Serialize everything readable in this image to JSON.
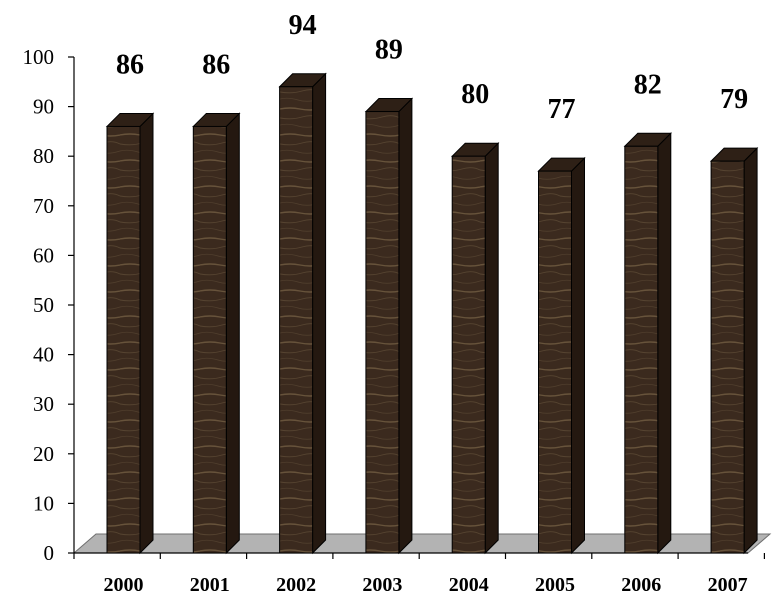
{
  "chart_data": {
    "type": "bar",
    "categories": [
      "2000",
      "2001",
      "2002",
      "2003",
      "2004",
      "2005",
      "2006",
      "2007"
    ],
    "values": [
      86,
      86,
      94,
      89,
      80,
      77,
      82,
      79
    ],
    "ylim": [
      0,
      100
    ],
    "yticks": [
      0,
      10,
      20,
      30,
      40,
      50,
      60,
      70,
      80,
      90,
      100
    ],
    "grid": false,
    "legend": "none",
    "colors": {
      "bar": "#3b2a1e",
      "bar_dark": "#241810",
      "bar_top": "#2e2016",
      "grain": "#8a7452",
      "floor": "#b3b3b3",
      "floor_edge": "#6f6f6f"
    }
  }
}
